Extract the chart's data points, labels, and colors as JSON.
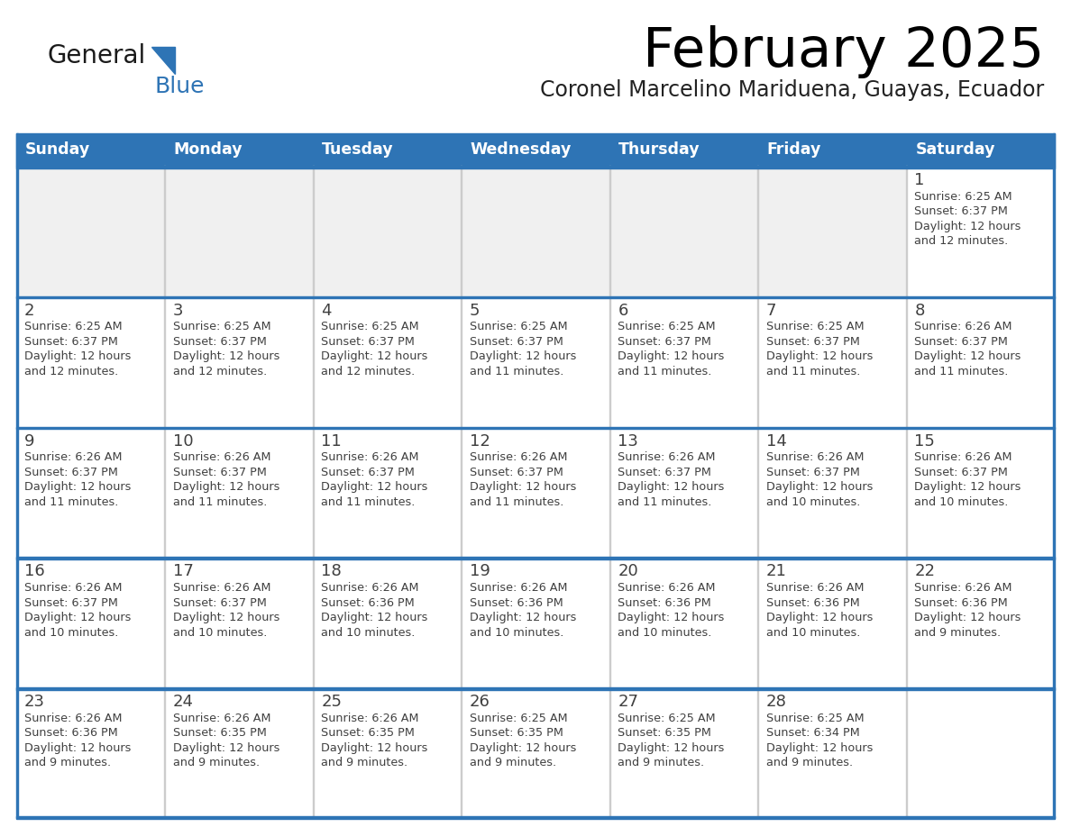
{
  "title": "February 2025",
  "subtitle": "Coronel Marcelino Mariduena, Guayas, Ecuador",
  "days_of_week": [
    "Sunday",
    "Monday",
    "Tuesday",
    "Wednesday",
    "Thursday",
    "Friday",
    "Saturday"
  ],
  "header_bg": "#2e74b5",
  "header_text": "#ffffff",
  "cell_bg_grey": "#f0f0f0",
  "cell_bg_white": "#ffffff",
  "separator_color": "#2e74b5",
  "cell_text_color": "#404040",
  "day_num_color": "#404040",
  "title_color": "#000000",
  "subtitle_color": "#222222",
  "logo_general_color": "#1a1a1a",
  "logo_blue_color": "#2e74b5",
  "calendar_data": [
    [
      null,
      null,
      null,
      null,
      null,
      null,
      {
        "day": 1,
        "sunrise": "6:25 AM",
        "sunset": "6:37 PM",
        "daylight": "12 hours",
        "daylight2": "and 12 minutes."
      }
    ],
    [
      {
        "day": 2,
        "sunrise": "6:25 AM",
        "sunset": "6:37 PM",
        "daylight": "12 hours",
        "daylight2": "and 12 minutes."
      },
      {
        "day": 3,
        "sunrise": "6:25 AM",
        "sunset": "6:37 PM",
        "daylight": "12 hours",
        "daylight2": "and 12 minutes."
      },
      {
        "day": 4,
        "sunrise": "6:25 AM",
        "sunset": "6:37 PM",
        "daylight": "12 hours",
        "daylight2": "and 12 minutes."
      },
      {
        "day": 5,
        "sunrise": "6:25 AM",
        "sunset": "6:37 PM",
        "daylight": "12 hours",
        "daylight2": "and 11 minutes."
      },
      {
        "day": 6,
        "sunrise": "6:25 AM",
        "sunset": "6:37 PM",
        "daylight": "12 hours",
        "daylight2": "and 11 minutes."
      },
      {
        "day": 7,
        "sunrise": "6:25 AM",
        "sunset": "6:37 PM",
        "daylight": "12 hours",
        "daylight2": "and 11 minutes."
      },
      {
        "day": 8,
        "sunrise": "6:26 AM",
        "sunset": "6:37 PM",
        "daylight": "12 hours",
        "daylight2": "and 11 minutes."
      }
    ],
    [
      {
        "day": 9,
        "sunrise": "6:26 AM",
        "sunset": "6:37 PM",
        "daylight": "12 hours",
        "daylight2": "and 11 minutes."
      },
      {
        "day": 10,
        "sunrise": "6:26 AM",
        "sunset": "6:37 PM",
        "daylight": "12 hours",
        "daylight2": "and 11 minutes."
      },
      {
        "day": 11,
        "sunrise": "6:26 AM",
        "sunset": "6:37 PM",
        "daylight": "12 hours",
        "daylight2": "and 11 minutes."
      },
      {
        "day": 12,
        "sunrise": "6:26 AM",
        "sunset": "6:37 PM",
        "daylight": "12 hours",
        "daylight2": "and 11 minutes."
      },
      {
        "day": 13,
        "sunrise": "6:26 AM",
        "sunset": "6:37 PM",
        "daylight": "12 hours",
        "daylight2": "and 11 minutes."
      },
      {
        "day": 14,
        "sunrise": "6:26 AM",
        "sunset": "6:37 PM",
        "daylight": "12 hours",
        "daylight2": "and 10 minutes."
      },
      {
        "day": 15,
        "sunrise": "6:26 AM",
        "sunset": "6:37 PM",
        "daylight": "12 hours",
        "daylight2": "and 10 minutes."
      }
    ],
    [
      {
        "day": 16,
        "sunrise": "6:26 AM",
        "sunset": "6:37 PM",
        "daylight": "12 hours",
        "daylight2": "and 10 minutes."
      },
      {
        "day": 17,
        "sunrise": "6:26 AM",
        "sunset": "6:37 PM",
        "daylight": "12 hours",
        "daylight2": "and 10 minutes."
      },
      {
        "day": 18,
        "sunrise": "6:26 AM",
        "sunset": "6:36 PM",
        "daylight": "12 hours",
        "daylight2": "and 10 minutes."
      },
      {
        "day": 19,
        "sunrise": "6:26 AM",
        "sunset": "6:36 PM",
        "daylight": "12 hours",
        "daylight2": "and 10 minutes."
      },
      {
        "day": 20,
        "sunrise": "6:26 AM",
        "sunset": "6:36 PM",
        "daylight": "12 hours",
        "daylight2": "and 10 minutes."
      },
      {
        "day": 21,
        "sunrise": "6:26 AM",
        "sunset": "6:36 PM",
        "daylight": "12 hours",
        "daylight2": "and 10 minutes."
      },
      {
        "day": 22,
        "sunrise": "6:26 AM",
        "sunset": "6:36 PM",
        "daylight": "12 hours",
        "daylight2": "and 9 minutes."
      }
    ],
    [
      {
        "day": 23,
        "sunrise": "6:26 AM",
        "sunset": "6:36 PM",
        "daylight": "12 hours",
        "daylight2": "and 9 minutes."
      },
      {
        "day": 24,
        "sunrise": "6:26 AM",
        "sunset": "6:35 PM",
        "daylight": "12 hours",
        "daylight2": "and 9 minutes."
      },
      {
        "day": 25,
        "sunrise": "6:26 AM",
        "sunset": "6:35 PM",
        "daylight": "12 hours",
        "daylight2": "and 9 minutes."
      },
      {
        "day": 26,
        "sunrise": "6:25 AM",
        "sunset": "6:35 PM",
        "daylight": "12 hours",
        "daylight2": "and 9 minutes."
      },
      {
        "day": 27,
        "sunrise": "6:25 AM",
        "sunset": "6:35 PM",
        "daylight": "12 hours",
        "daylight2": "and 9 minutes."
      },
      {
        "day": 28,
        "sunrise": "6:25 AM",
        "sunset": "6:34 PM",
        "daylight": "12 hours",
        "daylight2": "and 9 minutes."
      },
      null
    ]
  ]
}
